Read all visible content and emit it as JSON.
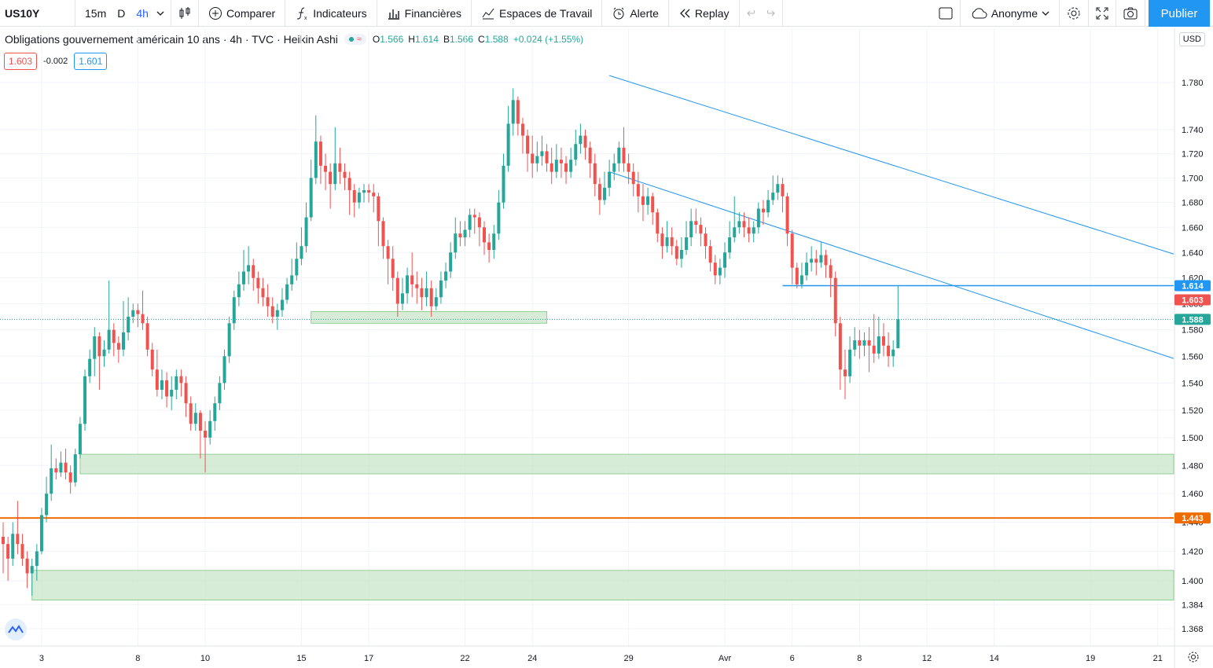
{
  "toolbar": {
    "symbol": "US10Y",
    "intervals": [
      "15m",
      "D",
      "4h"
    ],
    "active_interval": "4h",
    "compare": "Comparer",
    "indicators": "Indicateurs",
    "financials": "Financières",
    "workspaces": "Espaces de Travail",
    "alert": "Alerte",
    "replay": "Replay",
    "user": "Anonyme",
    "publish": "Publier"
  },
  "legend": {
    "title": "Obligations gouvernement américain 10 ans · 4h · TVC · Heikin Ashi",
    "pill_symbol": "≈",
    "o_label": "O",
    "o": "1.566",
    "h_label": "H",
    "h": "1.614",
    "b_label": "B",
    "b": "1.566",
    "c_label": "C",
    "c": "1.588",
    "change": "+0.024 (+1.55%)"
  },
  "quote": {
    "sell": "1.603",
    "spread": "-0.002",
    "buy": "1.601"
  },
  "currency": "USD",
  "colors": {
    "up": "#26a69a",
    "down": "#ef5350",
    "line": "#2196f3",
    "support": "#ef6c00",
    "zone": "#c8e6c9"
  },
  "chart_data": {
    "type": "candlestick",
    "style": "Heikin Ashi",
    "y_scale": "log",
    "ylim": [
      1.358,
      1.79
    ],
    "y_ticks": [
      1.368,
      1.384,
      1.4,
      1.42,
      1.44,
      1.46,
      1.48,
      1.5,
      1.52,
      1.54,
      1.56,
      1.58,
      1.6,
      1.62,
      1.64,
      1.66,
      1.68,
      1.7,
      1.72,
      1.74,
      1.78
    ],
    "y_tick_labels": [
      "1.368",
      "1.384",
      "1.400",
      "1.420",
      "1.440",
      "1.460",
      "1.480",
      "1.500",
      "1.520",
      "1.540",
      "1.560",
      "1.580",
      "1.600",
      "1.620",
      "1.640",
      "1.660",
      "1.680",
      "1.700",
      "1.720",
      "1.740",
      "1.780"
    ],
    "x_ticks": [
      {
        "label": "3",
        "i": 8
      },
      {
        "label": "8",
        "i": 28
      },
      {
        "label": "10",
        "i": 42
      },
      {
        "label": "15",
        "i": 62
      },
      {
        "label": "17",
        "i": 76
      },
      {
        "label": "22",
        "i": 96
      },
      {
        "label": "24",
        "i": 110
      },
      {
        "label": "29",
        "i": 130
      },
      {
        "label": "Avr",
        "i": 150
      },
      {
        "label": "6",
        "i": 164
      },
      {
        "label": "8",
        "i": 178
      },
      {
        "label": "12",
        "i": 192
      },
      {
        "label": "14",
        "i": 206
      },
      {
        "label": "19",
        "i": 226
      },
      {
        "label": "21",
        "i": 240
      }
    ],
    "bars": [
      [
        1.43,
        1.425,
        1.44,
        1.405
      ],
      [
        1.425,
        1.415,
        1.43,
        1.4
      ],
      [
        1.415,
        1.432,
        1.44,
        1.41
      ],
      [
        1.432,
        1.425,
        1.455,
        1.418
      ],
      [
        1.425,
        1.415,
        1.432,
        1.41
      ],
      [
        1.415,
        1.405,
        1.42,
        1.395
      ],
      [
        1.405,
        1.41,
        1.415,
        1.39
      ],
      [
        1.41,
        1.42,
        1.425,
        1.4
      ],
      [
        1.42,
        1.445,
        1.45,
        1.418
      ],
      [
        1.445,
        1.46,
        1.472,
        1.44
      ],
      [
        1.46,
        1.478,
        1.495,
        1.455
      ],
      [
        1.478,
        1.475,
        1.485,
        1.47
      ],
      [
        1.475,
        1.482,
        1.49,
        1.472
      ],
      [
        1.482,
        1.475,
        1.492,
        1.47
      ],
      [
        1.475,
        1.468,
        1.48,
        1.46
      ],
      [
        1.468,
        1.488,
        1.492,
        1.465
      ],
      [
        1.488,
        1.51,
        1.515,
        1.485
      ],
      [
        1.51,
        1.545,
        1.55,
        1.505
      ],
      [
        1.545,
        1.558,
        1.565,
        1.54
      ],
      [
        1.558,
        1.575,
        1.582,
        1.545
      ],
      [
        1.575,
        1.56,
        1.578,
        1.535
      ],
      [
        1.56,
        1.565,
        1.572,
        1.552
      ],
      [
        1.565,
        1.58,
        1.618,
        1.562
      ],
      [
        1.58,
        1.57,
        1.585,
        1.56
      ],
      [
        1.57,
        1.565,
        1.575,
        1.555
      ],
      [
        1.565,
        1.578,
        1.602,
        1.56
      ],
      [
        1.578,
        1.59,
        1.605,
        1.572
      ],
      [
        1.59,
        1.595,
        1.6,
        1.585
      ],
      [
        1.595,
        1.592,
        1.6,
        1.582
      ],
      [
        1.592,
        1.585,
        1.61,
        1.58
      ],
      [
        1.585,
        1.565,
        1.59,
        1.56
      ],
      [
        1.565,
        1.55,
        1.57,
        1.545
      ],
      [
        1.55,
        1.535,
        1.565,
        1.53
      ],
      [
        1.535,
        1.542,
        1.55,
        1.528
      ],
      [
        1.542,
        1.53,
        1.548,
        1.522
      ],
      [
        1.53,
        1.535,
        1.545,
        1.52
      ],
      [
        1.535,
        1.545,
        1.55,
        1.528
      ],
      [
        1.545,
        1.54,
        1.55,
        1.53
      ],
      [
        1.54,
        1.525,
        1.545,
        1.515
      ],
      [
        1.525,
        1.51,
        1.53,
        1.505
      ],
      [
        1.51,
        1.518,
        1.525,
        1.505
      ],
      [
        1.518,
        1.505,
        1.52,
        1.485
      ],
      [
        1.505,
        1.5,
        1.512,
        1.475
      ],
      [
        1.5,
        1.512,
        1.52,
        1.495
      ],
      [
        1.512,
        1.525,
        1.53,
        1.505
      ],
      [
        1.525,
        1.54,
        1.545,
        1.52
      ],
      [
        1.54,
        1.56,
        1.565,
        1.535
      ],
      [
        1.56,
        1.585,
        1.59,
        1.555
      ],
      [
        1.585,
        1.605,
        1.61,
        1.58
      ],
      [
        1.605,
        1.615,
        1.625,
        1.598
      ],
      [
        1.615,
        1.625,
        1.642,
        1.61
      ],
      [
        1.625,
        1.63,
        1.645,
        1.615
      ],
      [
        1.63,
        1.62,
        1.635,
        1.61
      ],
      [
        1.62,
        1.612,
        1.625,
        1.6
      ],
      [
        1.612,
        1.605,
        1.62,
        1.598
      ],
      [
        1.605,
        1.598,
        1.615,
        1.59
      ],
      [
        1.598,
        1.59,
        1.605,
        1.585
      ],
      [
        1.59,
        1.595,
        1.6,
        1.58
      ],
      [
        1.595,
        1.603,
        1.612,
        1.59
      ],
      [
        1.603,
        1.615,
        1.62,
        1.6
      ],
      [
        1.615,
        1.622,
        1.635,
        1.61
      ],
      [
        1.622,
        1.635,
        1.648,
        1.618
      ],
      [
        1.635,
        1.645,
        1.66,
        1.63
      ],
      [
        1.645,
        1.668,
        1.68,
        1.64
      ],
      [
        1.668,
        1.7,
        1.715,
        1.665
      ],
      [
        1.7,
        1.73,
        1.752,
        1.695
      ],
      [
        1.73,
        1.71,
        1.735,
        1.695
      ],
      [
        1.71,
        1.705,
        1.72,
        1.69
      ],
      [
        1.705,
        1.695,
        1.712,
        1.675
      ],
      [
        1.695,
        1.712,
        1.742,
        1.69
      ],
      [
        1.712,
        1.705,
        1.725,
        1.695
      ],
      [
        1.705,
        1.7,
        1.712,
        1.69
      ],
      [
        1.7,
        1.69,
        1.705,
        1.67
      ],
      [
        1.69,
        1.68,
        1.695,
        1.668
      ],
      [
        1.68,
        1.688,
        1.692,
        1.675
      ],
      [
        1.688,
        1.69,
        1.695,
        1.68
      ],
      [
        1.69,
        1.688,
        1.695,
        1.68
      ],
      [
        1.688,
        1.685,
        1.695,
        1.672
      ],
      [
        1.685,
        1.665,
        1.688,
        1.645
      ],
      [
        1.665,
        1.645,
        1.668,
        1.635
      ],
      [
        1.645,
        1.635,
        1.65,
        1.615
      ],
      [
        1.635,
        1.62,
        1.645,
        1.61
      ],
      [
        1.62,
        1.6,
        1.625,
        1.59
      ],
      [
        1.6,
        1.608,
        1.62,
        1.595
      ],
      [
        1.608,
        1.622,
        1.628,
        1.6
      ],
      [
        1.622,
        1.615,
        1.64,
        1.605
      ],
      [
        1.615,
        1.612,
        1.625,
        1.6
      ],
      [
        1.612,
        1.605,
        1.62,
        1.595
      ],
      [
        1.605,
        1.612,
        1.625,
        1.598
      ],
      [
        1.612,
        1.598,
        1.618,
        1.59
      ],
      [
        1.598,
        1.605,
        1.612,
        1.595
      ],
      [
        1.605,
        1.618,
        1.625,
        1.6
      ],
      [
        1.618,
        1.625,
        1.632,
        1.612
      ],
      [
        1.625,
        1.64,
        1.648,
        1.62
      ],
      [
        1.64,
        1.655,
        1.668,
        1.635
      ],
      [
        1.655,
        1.652,
        1.665,
        1.645
      ],
      [
        1.652,
        1.658,
        1.665,
        1.645
      ],
      [
        1.658,
        1.67,
        1.675,
        1.652
      ],
      [
        1.67,
        1.668,
        1.675,
        1.655
      ],
      [
        1.668,
        1.66,
        1.672,
        1.645
      ],
      [
        1.66,
        1.648,
        1.665,
        1.638
      ],
      [
        1.648,
        1.642,
        1.655,
        1.632
      ],
      [
        1.642,
        1.655,
        1.662,
        1.635
      ],
      [
        1.655,
        1.68,
        1.69,
        1.65
      ],
      [
        1.68,
        1.71,
        1.72,
        1.675
      ],
      [
        1.71,
        1.745,
        1.76,
        1.705
      ],
      [
        1.745,
        1.765,
        1.775,
        1.735
      ],
      [
        1.765,
        1.745,
        1.768,
        1.735
      ],
      [
        1.745,
        1.735,
        1.75,
        1.72
      ],
      [
        1.735,
        1.72,
        1.74,
        1.705
      ],
      [
        1.72,
        1.712,
        1.735,
        1.7
      ],
      [
        1.712,
        1.718,
        1.73,
        1.705
      ],
      [
        1.718,
        1.722,
        1.735,
        1.71
      ],
      [
        1.722,
        1.712,
        1.728,
        1.705
      ],
      [
        1.712,
        1.705,
        1.725,
        1.695
      ],
      [
        1.705,
        1.715,
        1.728,
        1.7
      ],
      [
        1.715,
        1.712,
        1.725,
        1.7
      ],
      [
        1.712,
        1.705,
        1.718,
        1.695
      ],
      [
        1.705,
        1.715,
        1.725,
        1.7
      ],
      [
        1.715,
        1.728,
        1.74,
        1.71
      ],
      [
        1.728,
        1.735,
        1.745,
        1.72
      ],
      [
        1.735,
        1.725,
        1.74,
        1.715
      ],
      [
        1.725,
        1.712,
        1.73,
        1.7
      ],
      [
        1.712,
        1.695,
        1.72,
        1.685
      ],
      [
        1.695,
        1.682,
        1.7,
        1.67
      ],
      [
        1.682,
        1.692,
        1.705,
        1.678
      ],
      [
        1.692,
        1.705,
        1.715,
        1.685
      ],
      [
        1.705,
        1.712,
        1.72,
        1.698
      ],
      [
        1.712,
        1.725,
        1.73,
        1.705
      ],
      [
        1.725,
        1.712,
        1.742,
        1.705
      ],
      [
        1.712,
        1.705,
        1.72,
        1.695
      ],
      [
        1.705,
        1.695,
        1.712,
        1.685
      ],
      [
        1.695,
        1.685,
        1.705,
        1.672
      ],
      [
        1.685,
        1.678,
        1.695,
        1.665
      ],
      [
        1.678,
        1.685,
        1.692,
        1.67
      ],
      [
        1.685,
        1.672,
        1.688,
        1.662
      ],
      [
        1.672,
        1.655,
        1.675,
        1.648
      ],
      [
        1.655,
        1.645,
        1.66,
        1.635
      ],
      [
        1.645,
        1.652,
        1.665,
        1.64
      ],
      [
        1.652,
        1.645,
        1.66,
        1.638
      ],
      [
        1.645,
        1.635,
        1.65,
        1.63
      ],
      [
        1.635,
        1.642,
        1.652,
        1.628
      ],
      [
        1.642,
        1.652,
        1.665,
        1.638
      ],
      [
        1.652,
        1.665,
        1.675,
        1.645
      ],
      [
        1.665,
        1.662,
        1.675,
        1.655
      ],
      [
        1.662,
        1.655,
        1.668,
        1.645
      ],
      [
        1.655,
        1.645,
        1.66,
        1.635
      ],
      [
        1.645,
        1.632,
        1.65,
        1.625
      ],
      [
        1.632,
        1.622,
        1.638,
        1.615
      ],
      [
        1.622,
        1.628,
        1.635,
        1.615
      ],
      [
        1.628,
        1.64,
        1.648,
        1.62
      ],
      [
        1.64,
        1.652,
        1.665,
        1.635
      ],
      [
        1.652,
        1.66,
        1.685,
        1.648
      ],
      [
        1.66,
        1.665,
        1.672,
        1.655
      ],
      [
        1.665,
        1.66,
        1.672,
        1.652
      ],
      [
        1.66,
        1.655,
        1.668,
        1.648
      ],
      [
        1.655,
        1.66,
        1.665,
        1.648
      ],
      [
        1.66,
        1.675,
        1.68,
        1.655
      ],
      [
        1.675,
        1.672,
        1.682,
        1.662
      ],
      [
        1.672,
        1.682,
        1.69,
        1.668
      ],
      [
        1.682,
        1.688,
        1.702,
        1.678
      ],
      [
        1.688,
        1.695,
        1.702,
        1.682
      ],
      [
        1.695,
        1.685,
        1.7,
        1.672
      ],
      [
        1.685,
        1.655,
        1.688,
        1.645
      ],
      [
        1.655,
        1.628,
        1.658,
        1.615
      ],
      [
        1.628,
        1.615,
        1.632,
        1.612
      ],
      [
        1.615,
        1.622,
        1.632,
        1.612
      ],
      [
        1.622,
        1.632,
        1.64,
        1.618
      ],
      [
        1.632,
        1.635,
        1.645,
        1.625
      ],
      [
        1.635,
        1.632,
        1.642,
        1.622
      ],
      [
        1.632,
        1.638,
        1.648,
        1.628
      ],
      [
        1.638,
        1.63,
        1.642,
        1.62
      ],
      [
        1.63,
        1.62,
        1.635,
        1.605
      ],
      [
        1.62,
        1.585,
        1.625,
        1.575
      ],
      [
        1.585,
        1.55,
        1.59,
        1.535
      ],
      [
        1.55,
        1.545,
        1.565,
        1.528
      ],
      [
        1.545,
        1.565,
        1.575,
        1.54
      ],
      [
        1.565,
        1.572,
        1.582,
        1.56
      ],
      [
        1.572,
        1.568,
        1.58,
        1.558
      ],
      [
        1.568,
        1.572,
        1.578,
        1.56
      ],
      [
        1.572,
        1.568,
        1.582,
        1.548
      ],
      [
        1.568,
        1.562,
        1.592,
        1.555
      ],
      [
        1.562,
        1.575,
        1.59,
        1.558
      ],
      [
        1.575,
        1.568,
        1.585,
        1.56
      ],
      [
        1.568,
        1.56,
        1.578,
        1.552
      ],
      [
        1.56,
        1.565,
        1.572,
        1.552
      ],
      [
        1.566,
        1.588,
        1.614,
        1.566
      ]
    ],
    "zones": [
      {
        "from_i": 64,
        "to_i": 113,
        "y0": 1.585,
        "y1": 1.594
      },
      {
        "from_i": 16,
        "to_i": 300,
        "y0": 1.474,
        "y1": 1.488
      },
      {
        "from_i": 6,
        "to_i": 300,
        "y0": 1.387,
        "y1": 1.407
      }
    ],
    "channel_upper": [
      [
        126,
        1.786
      ],
      [
        300,
        1.572
      ]
    ],
    "channel_lower": [
      [
        126,
        1.705
      ],
      [
        300,
        1.492
      ]
    ],
    "resistance": {
      "from_i": 162,
      "value": 1.614,
      "label": "1.614"
    },
    "support": {
      "value": 1.443,
      "label": "1.443"
    },
    "price_labels": [
      {
        "value": 1.603,
        "label": "1.603",
        "color": "#ef5350"
      },
      {
        "value": 1.588,
        "label": "1.588",
        "color": "#26a69a"
      }
    ],
    "last_price": 1.588
  }
}
